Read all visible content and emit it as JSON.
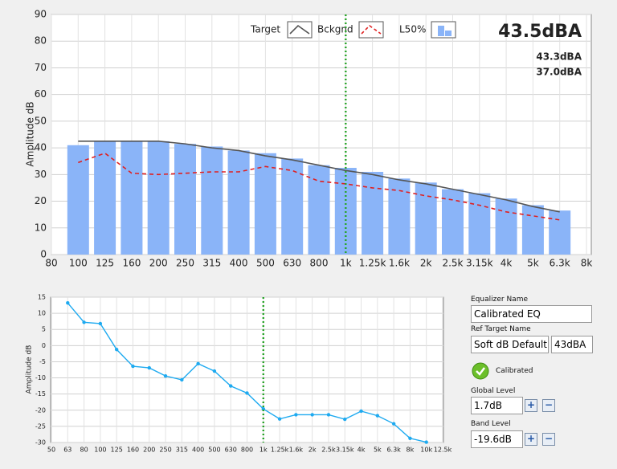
{
  "chart_data": [
    {
      "type": "combo",
      "y_label": "Amplitude dB",
      "categories": [
        "80",
        "100",
        "125",
        "160",
        "200",
        "250",
        "315",
        "400",
        "500",
        "630",
        "800",
        "1k",
        "1.25k",
        "1.6k",
        "2k",
        "2.5k",
        "3.15k",
        "4k",
        "5k",
        "6.3k",
        "8k"
      ],
      "cursor": "1k",
      "series": [
        {
          "name": "L50%",
          "style": "bar",
          "color": "#8ab4f8",
          "values": [
            null,
            41,
            42.5,
            42.5,
            42.5,
            41.5,
            40.5,
            39,
            38,
            36,
            33.5,
            32.5,
            31,
            28.5,
            27,
            24.5,
            23,
            21,
            18.5,
            16.5,
            null
          ]
        },
        {
          "name": "Target",
          "style": "line",
          "color": "#555555",
          "values": [
            null,
            42.5,
            42.5,
            42.5,
            42.5,
            41.5,
            40,
            39,
            37,
            35.5,
            33.5,
            31.5,
            30,
            28,
            26.5,
            24.5,
            22.5,
            20.5,
            18,
            16,
            null
          ]
        },
        {
          "name": "Bckgnd",
          "style": "dashed",
          "color": "#e02020",
          "values": [
            null,
            34.5,
            38,
            30.5,
            30,
            30.5,
            31,
            31,
            33,
            31.5,
            27.5,
            26.5,
            25,
            24,
            22,
            20.5,
            18.5,
            16,
            14.5,
            13,
            null
          ]
        }
      ],
      "readouts": [
        {
          "text": "43.5dBA",
          "color": "#29b6e8"
        },
        {
          "text": "43.3dBA",
          "color": "#555555"
        },
        {
          "text": "37.0dBA",
          "color": "#e02020"
        }
      ],
      "ylim": [
        0,
        90
      ],
      "yticks": [
        0,
        10,
        20,
        30,
        40,
        50,
        60,
        70,
        80,
        90
      ],
      "grid": true
    },
    {
      "type": "line",
      "y_label": "Amplitude dB",
      "categories": [
        "50",
        "63",
        "80",
        "100",
        "125",
        "160",
        "200",
        "250",
        "315",
        "400",
        "500",
        "630",
        "800",
        "1k",
        "1.25k",
        "1.6k",
        "2k",
        "2.5k",
        "3.15k",
        "4k",
        "5k",
        "6.3k",
        "8k",
        "10k",
        "12.5k"
      ],
      "cursor": "1k",
      "color": "#1eaaf0",
      "values": [
        null,
        13.2,
        7.2,
        6.8,
        -1.2,
        -6.4,
        -6.9,
        -9.4,
        -10.6,
        -5.6,
        -7.9,
        -12.5,
        -14.7,
        -19.6,
        -22.7,
        -21.4,
        -21.4,
        -21.4,
        -22.8,
        -20.3,
        -21.7,
        -24.2,
        -28.7,
        -29.9,
        null
      ],
      "ylim": [
        -30,
        15
      ],
      "yticks": [
        -30,
        -25,
        -20,
        -15,
        -10,
        -5,
        0,
        5,
        10,
        15
      ],
      "grid": true
    }
  ],
  "panel": {
    "eq_label": "Equalizer Name",
    "eq_name": "Calibrated EQ",
    "ref_label": "Ref Target Name",
    "ref_name": "Soft dB Default",
    "ref_level": "43dBA",
    "status": "Calibrated",
    "global_label": "Global Level",
    "global_value": "1.7dB",
    "band_label": "Band Level",
    "band_value": "-19.6dB"
  }
}
